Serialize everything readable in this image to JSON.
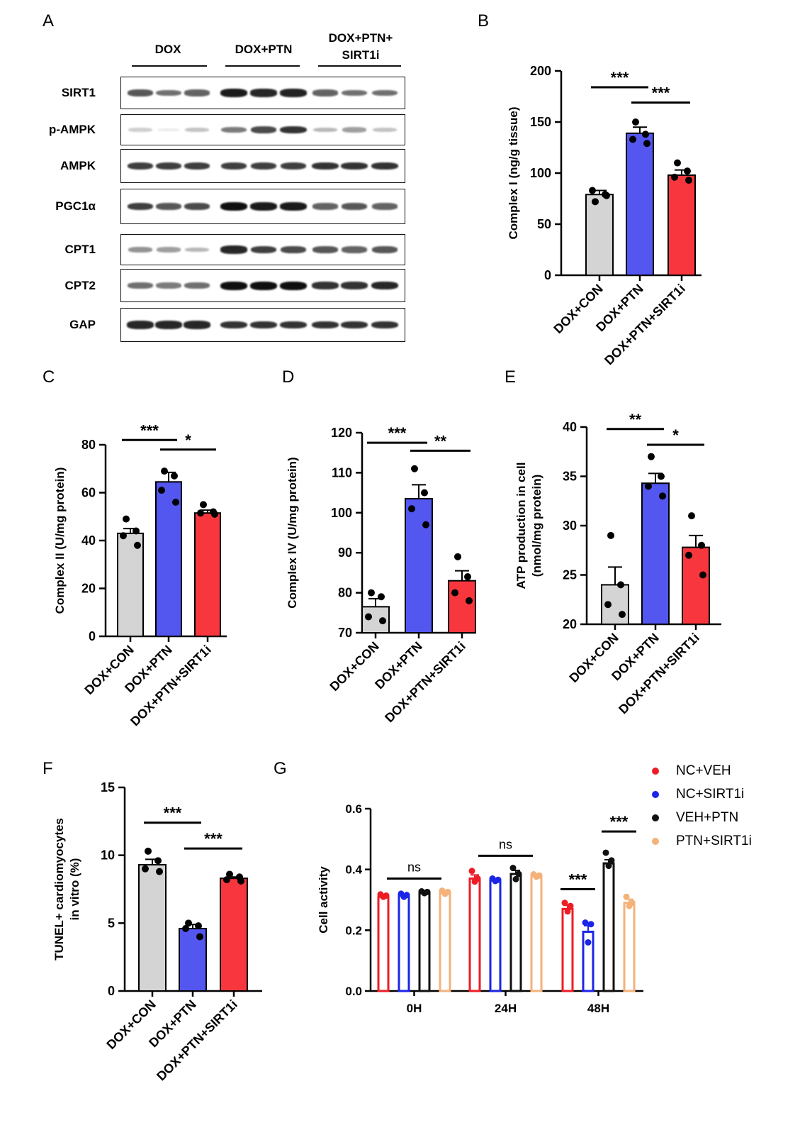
{
  "panels": {
    "A": "A",
    "B": "B",
    "C": "C",
    "D": "D",
    "E": "E",
    "F": "F",
    "G": "G"
  },
  "colors": {
    "gray": "#d4d4d4",
    "blue": "#5456f0",
    "red": "#f7373d",
    "g_red": "#ee1c25",
    "g_blue": "#1b25e8",
    "g_black": "#111111",
    "g_orange": "#f4b27a"
  },
  "blot": {
    "groups": [
      {
        "label": "DOX"
      },
      {
        "label": "DOX+PTN"
      },
      {
        "label": "DOX+PTN+\nSIRT1i"
      }
    ],
    "proteins": [
      {
        "label": "SIRT1",
        "intensity": [
          0.7,
          0.6,
          0.65,
          0.95,
          0.9,
          0.92,
          0.65,
          0.6,
          0.6
        ]
      },
      {
        "label": "p-AMPK",
        "intensity": [
          0.2,
          0.08,
          0.25,
          0.55,
          0.75,
          0.85,
          0.3,
          0.4,
          0.25
        ]
      },
      {
        "label": "AMPK",
        "intensity": [
          0.8,
          0.8,
          0.8,
          0.8,
          0.8,
          0.8,
          0.85,
          0.85,
          0.85
        ]
      },
      {
        "label": "PGC1α",
        "intensity": [
          0.8,
          0.7,
          0.75,
          1.0,
          0.95,
          0.95,
          0.65,
          0.7,
          0.65
        ]
      },
      {
        "label": "CPT1",
        "intensity": [
          0.45,
          0.4,
          0.3,
          0.9,
          0.8,
          0.75,
          0.7,
          0.65,
          0.7
        ]
      },
      {
        "label": "CPT2",
        "intensity": [
          0.6,
          0.55,
          0.6,
          1.0,
          1.0,
          1.0,
          0.85,
          0.85,
          0.9
        ]
      },
      {
        "label": "GAP",
        "intensity": [
          0.9,
          0.9,
          0.9,
          0.85,
          0.85,
          0.85,
          0.85,
          0.85,
          0.85
        ]
      }
    ]
  },
  "chart_data": [
    {
      "panel": "B",
      "type": "bar",
      "categories": [
        "DOX+CON",
        "DOX+PTN",
        "DOX+PTN+SIRT1i"
      ],
      "values": [
        79,
        139,
        98
      ],
      "errors": [
        4,
        6,
        5
      ],
      "points": [
        [
          72,
          79,
          83,
          78
        ],
        [
          150,
          138,
          133,
          129
        ],
        [
          110,
          102,
          96,
          93
        ]
      ],
      "ylabel": "Complex I (ng/g tissue)",
      "ylim": [
        0,
        200
      ],
      "yticks": [
        0,
        50,
        100,
        150,
        200
      ],
      "sig": [
        {
          "from": 0,
          "to": 1,
          "label": "***",
          "value": 184
        },
        {
          "from": 1,
          "to": 2,
          "label": "***",
          "value": 169
        }
      ]
    },
    {
      "panel": "C",
      "type": "bar",
      "categories": [
        "DOX+CON",
        "DOX+PTN",
        "DOX+PTN+SIRT1i"
      ],
      "values": [
        43,
        64.5,
        51.5
      ],
      "errors": [
        2,
        4,
        1.2
      ],
      "points": [
        [
          49,
          44,
          42,
          38
        ],
        [
          69,
          67,
          61,
          56
        ],
        [
          55,
          52,
          51.5,
          51
        ]
      ],
      "ylabel": "Complex II (U/mg protein)",
      "ylim": [
        0,
        80
      ],
      "yticks": [
        0,
        20,
        40,
        60,
        80
      ],
      "sig": [
        {
          "from": 0,
          "to": 1,
          "label": "***",
          "value": 82
        },
        {
          "from": 1,
          "to": 2,
          "label": "*",
          "value": 78
        }
      ]
    },
    {
      "panel": "D",
      "type": "bar",
      "categories": [
        "DOX+CON",
        "DOX+PTN",
        "DOX+PTN+SIRT1i"
      ],
      "values": [
        76.5,
        103.5,
        83
      ],
      "errors": [
        2,
        3.5,
        2.5
      ],
      "points": [
        [
          80,
          79,
          74,
          73
        ],
        [
          111,
          105,
          101,
          97
        ],
        [
          89,
          84,
          80,
          78
        ]
      ],
      "ylabel": "Complex IV (U/mg protein)",
      "ylim": [
        70,
        120
      ],
      "yticks": [
        70,
        80,
        90,
        100,
        110,
        120
      ],
      "sig": [
        {
          "from": 0,
          "to": 1,
          "label": "***",
          "value": 117.5
        },
        {
          "from": 1,
          "to": 2,
          "label": "**",
          "value": 115.5
        }
      ]
    },
    {
      "panel": "E",
      "type": "bar",
      "categories": [
        "DOX+CON",
        "DOX+PTN",
        "DOX+PTN+SIRT1i"
      ],
      "values": [
        24,
        34.3,
        27.8
      ],
      "errors": [
        1.8,
        1,
        1.2
      ],
      "points": [
        [
          29,
          24,
          22,
          21
        ],
        [
          37,
          35,
          34,
          33
        ],
        [
          31,
          28,
          27,
          25
        ]
      ],
      "ylabel": "ATP production in cell (nmol/mg protein)",
      "ylabel_lines": [
        "ATP production in cell",
        "(nmol/mg protein)"
      ],
      "ylim": [
        20,
        40
      ],
      "yticks": [
        20,
        25,
        30,
        35,
        40
      ],
      "sig": [
        {
          "from": 0,
          "to": 1,
          "label": "**",
          "value": 39.8
        },
        {
          "from": 1,
          "to": 2,
          "label": "*",
          "value": 38.2
        }
      ]
    },
    {
      "panel": "F",
      "type": "bar",
      "categories": [
        "DOX+CON",
        "DOX+PTN",
        "DOX+PTN+SIRT1i"
      ],
      "values": [
        9.3,
        4.6,
        8.3
      ],
      "errors": [
        0.4,
        0.3,
        0.1
      ],
      "points": [
        [
          10.3,
          9.6,
          9.0,
          8.8
        ],
        [
          5.0,
          4.8,
          4.6,
          4.0
        ],
        [
          8.6,
          8.4,
          8.2,
          8.1
        ]
      ],
      "ylabel": "TUNEL+ cardiomyocytes in vitro (%)",
      "ylabel_lines": [
        "TUNEL+ cardiomyocytes",
        "in vitro (%)"
      ],
      "ylim": [
        0,
        15
      ],
      "yticks": [
        0,
        5,
        10,
        15
      ],
      "sig": [
        {
          "from": 0,
          "to": 1,
          "label": "***",
          "value": 12.4
        },
        {
          "from": 1,
          "to": 2,
          "label": "***",
          "value": 10.5
        }
      ]
    },
    {
      "panel": "G",
      "type": "bar",
      "categories": [
        "0H",
        "24H",
        "48H"
      ],
      "series": [
        {
          "name": "NC+VEH",
          "values": [
            0.31,
            0.37,
            0.27
          ],
          "errors": [
            0.004,
            0.012,
            0.012
          ],
          "points": [
            [
              0.318,
              0.314,
              0.31
            ],
            [
              0.395,
              0.37,
              0.36
            ],
            [
              0.29,
              0.28,
              0.262
            ]
          ]
        },
        {
          "name": "NC+SIRT1i",
          "values": [
            0.315,
            0.365,
            0.195
          ],
          "errors": [
            0.004,
            0.005,
            0.02
          ],
          "points": [
            [
              0.32,
              0.316,
              0.31
            ],
            [
              0.37,
              0.366,
              0.362
            ],
            [
              0.225,
              0.22,
              0.16
            ]
          ]
        },
        {
          "name": "VEH+PTN",
          "values": [
            0.325,
            0.385,
            0.42
          ],
          "errors": [
            0.003,
            0.012,
            0.012
          ],
          "points": [
            [
              0.328,
              0.326,
              0.322
            ],
            [
              0.405,
              0.385,
              0.368
            ],
            [
              0.455,
              0.43,
              0.412
            ]
          ]
        },
        {
          "name": "PTN+SIRT1i",
          "values": [
            0.325,
            0.38,
            0.29
          ],
          "errors": [
            0.004,
            0.004,
            0.012
          ],
          "points": [
            [
              0.33,
              0.326,
              0.32
            ],
            [
              0.384,
              0.38,
              0.376
            ],
            [
              0.31,
              0.29,
              0.28
            ]
          ]
        }
      ],
      "ylabel": "Cell activity",
      "ylim": [
        0,
        0.6
      ],
      "yticks": [
        "0.0",
        "0.2",
        "0.4",
        "0.6"
      ],
      "sig": [
        {
          "group": 0,
          "label": "ns",
          "value": 0.37
        },
        {
          "group": 1,
          "label": "ns",
          "value": 0.445
        },
        {
          "group": 2,
          "from_series": 0,
          "to_series": 1,
          "label": "***",
          "value": 0.335
        },
        {
          "group": 2,
          "from_series": 2,
          "to_series": 3,
          "label": "***",
          "value": 0.525
        }
      ],
      "legend_position": "top-right"
    }
  ]
}
